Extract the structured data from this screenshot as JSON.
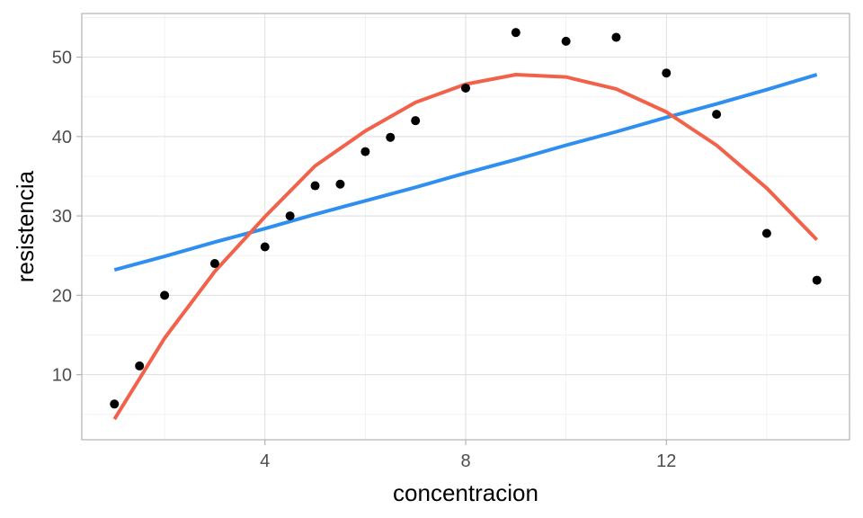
{
  "chart_data": {
    "type": "scatter",
    "xlabel": "concentracion",
    "ylabel": "resistencia",
    "xlim": [
      0.35,
      15.65
    ],
    "ylim": [
      1.8,
      55.5
    ],
    "x_ticks": [
      4,
      8,
      12
    ],
    "x_tick_labels": [
      "4",
      "8",
      "12"
    ],
    "y_ticks": [
      10,
      20,
      30,
      40,
      50
    ],
    "y_tick_labels": [
      "10",
      "20",
      "30",
      "40",
      "50"
    ],
    "x_minor_ticks": [
      2,
      6,
      10,
      14
    ],
    "y_minor_ticks": [
      5,
      15,
      25,
      35,
      45,
      55
    ],
    "grid": true,
    "points": [
      {
        "x": 1.0,
        "y": 6.3
      },
      {
        "x": 1.5,
        "y": 11.1
      },
      {
        "x": 2.0,
        "y": 20.0
      },
      {
        "x": 3.0,
        "y": 24.0
      },
      {
        "x": 4.0,
        "y": 26.1
      },
      {
        "x": 4.5,
        "y": 30.0
      },
      {
        "x": 5.0,
        "y": 33.8
      },
      {
        "x": 5.5,
        "y": 34.0
      },
      {
        "x": 6.0,
        "y": 38.1
      },
      {
        "x": 6.5,
        "y": 39.9
      },
      {
        "x": 7.0,
        "y": 42.0
      },
      {
        "x": 8.0,
        "y": 46.1
      },
      {
        "x": 9.0,
        "y": 53.1
      },
      {
        "x": 10.0,
        "y": 52.0
      },
      {
        "x": 11.0,
        "y": 52.5
      },
      {
        "x": 12.0,
        "y": 48.0
      },
      {
        "x": 13.0,
        "y": 42.8
      },
      {
        "x": 14.0,
        "y": 27.8
      },
      {
        "x": 15.0,
        "y": 21.9
      }
    ],
    "series": [
      {
        "type": "line",
        "color": "#2f8ff0",
        "x": [
          1,
          2,
          3,
          4,
          5,
          6,
          7,
          8,
          9,
          10,
          11,
          12,
          13,
          14,
          15
        ],
        "y": [
          23.2,
          24.9,
          26.7,
          28.4,
          30.2,
          31.9,
          33.6,
          35.4,
          37.1,
          38.9,
          40.6,
          42.4,
          44.1,
          45.9,
          47.8
        ]
      },
      {
        "type": "line",
        "color": "#f2624a",
        "x": [
          1,
          2,
          3,
          4,
          5,
          6,
          7,
          8,
          9,
          10,
          11,
          12,
          13,
          14,
          15
        ],
        "y": [
          4.4,
          14.6,
          23.0,
          29.9,
          36.3,
          40.7,
          44.3,
          46.6,
          47.8,
          47.5,
          46.0,
          43.1,
          38.9,
          33.5,
          27.0
        ]
      }
    ],
    "point_color": "#000000"
  }
}
